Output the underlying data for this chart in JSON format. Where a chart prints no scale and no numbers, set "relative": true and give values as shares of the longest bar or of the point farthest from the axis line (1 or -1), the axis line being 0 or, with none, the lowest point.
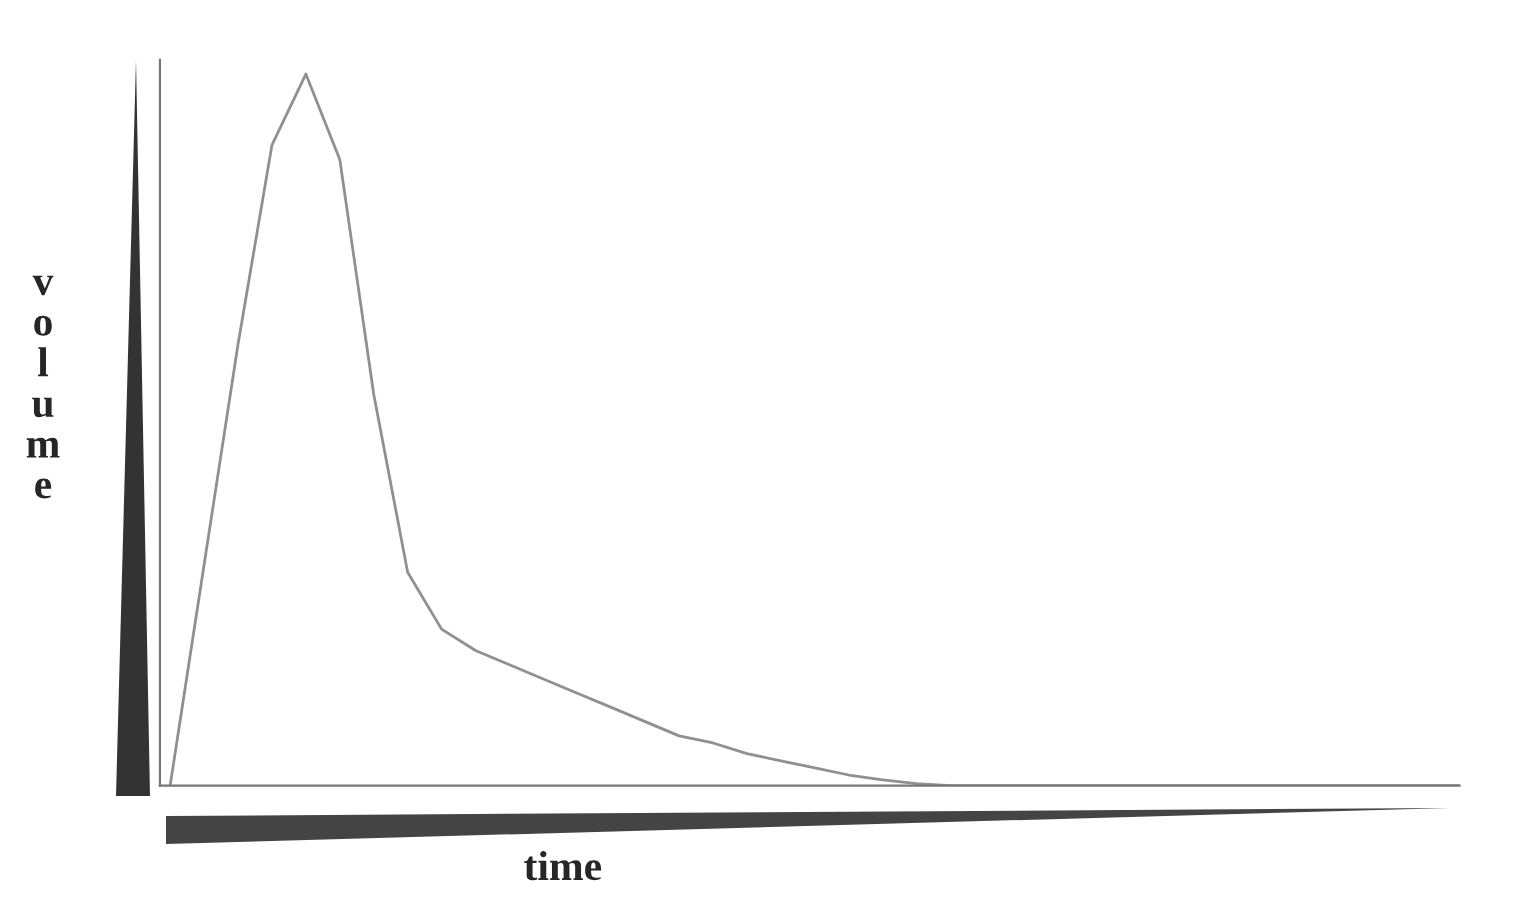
{
  "chart_data": {
    "type": "line",
    "relative": true,
    "xlabel": "time",
    "ylabel": "volume",
    "categories": [
      null,
      null,
      null,
      null,
      null,
      null,
      null,
      null,
      null,
      null,
      null,
      null,
      null,
      null,
      null,
      null,
      null,
      null,
      null,
      null,
      null,
      null,
      null,
      null,
      null,
      null,
      null,
      null,
      null,
      null,
      null,
      null,
      null,
      null,
      null,
      null,
      null,
      null,
      null
    ],
    "series": [
      {
        "color": "#909090",
        "values": [
          0,
          0.31,
          0.62,
          0.9,
          1.0,
          0.88,
          0.55,
          0.3,
          0.22,
          0.19,
          0.17,
          0.15,
          0.13,
          0.11,
          0.09,
          0.07,
          0.06,
          0.045,
          0.035,
          0.025,
          0.015,
          0.008,
          0.003,
          0,
          0,
          0,
          0,
          0,
          0,
          0,
          0,
          0,
          0,
          0,
          0,
          0,
          0,
          0,
          0
        ]
      }
    ],
    "legend": false,
    "marker": "none",
    "line_style": "solid"
  }
}
